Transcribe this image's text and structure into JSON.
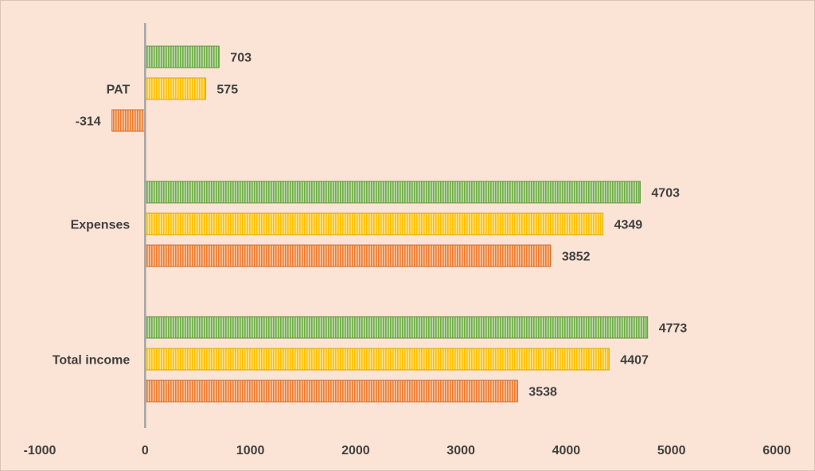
{
  "chart_data": {
    "type": "bar",
    "orientation": "horizontal",
    "categories": [
      "PAT",
      "Expenses",
      "Total income"
    ],
    "series": [
      {
        "color": "#70ad47",
        "values": [
          703,
          4703,
          4773
        ]
      },
      {
        "color": "#ffc000",
        "values": [
          575,
          4349,
          4407
        ]
      },
      {
        "color": "#ed7d31",
        "values": [
          -314,
          3852,
          3538
        ]
      }
    ],
    "xlim": [
      -1000,
      6000
    ],
    "xticks": [
      -1000,
      0,
      1000,
      2000,
      3000,
      4000,
      5000,
      6000
    ],
    "grid": false,
    "data_labels": true,
    "pattern": "vertical-stripes"
  }
}
